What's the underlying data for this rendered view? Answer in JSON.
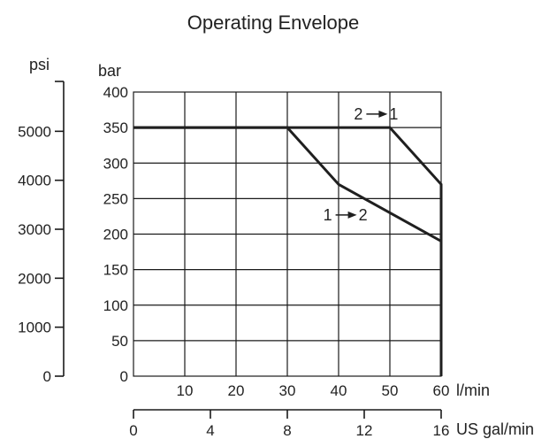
{
  "chart_data": {
    "type": "line",
    "title": "Operating Envelope",
    "x": {
      "label": "l/min",
      "range": [
        0,
        60
      ],
      "ticks": [
        10,
        20,
        30,
        40,
        50,
        60
      ],
      "tick_labels": [
        "10",
        "20",
        "30",
        "40",
        "50",
        "60"
      ]
    },
    "x_secondary": {
      "label": "US gal/min",
      "range": [
        0,
        16
      ],
      "ticks": [
        0,
        4,
        8,
        12,
        16
      ],
      "tick_labels": [
        "0",
        "4",
        "8",
        "12",
        "16"
      ]
    },
    "y": {
      "label": "bar",
      "range": [
        0,
        400
      ],
      "ticks": [
        0,
        50,
        100,
        150,
        200,
        250,
        300,
        350,
        400
      ],
      "tick_labels": [
        "0",
        "50",
        "100",
        "150",
        "200",
        "250",
        "300",
        "350",
        "400"
      ]
    },
    "y_secondary": {
      "label": "psi",
      "ticks_bar": [
        0,
        68.95,
        137.9,
        206.84,
        275.79,
        344.74
      ],
      "tick_labels": [
        "0",
        "1000",
        "2000",
        "3000",
        "4000",
        "5000"
      ]
    },
    "grid": true,
    "series": [
      {
        "name": "2 → 1",
        "points": [
          [
            0,
            350
          ],
          [
            50,
            350
          ],
          [
            60,
            270
          ],
          [
            60,
            0
          ]
        ]
      },
      {
        "name": "1 → 2",
        "points": [
          [
            0,
            350
          ],
          [
            30,
            350
          ],
          [
            40,
            270
          ],
          [
            60,
            190
          ]
        ]
      }
    ],
    "annotations": [
      {
        "series": 0,
        "text_a": "2",
        "text_b": "1",
        "at": [
          43,
          369
        ]
      },
      {
        "series": 1,
        "text_a": "1",
        "text_b": "2",
        "at": [
          37,
          227
        ]
      }
    ]
  }
}
